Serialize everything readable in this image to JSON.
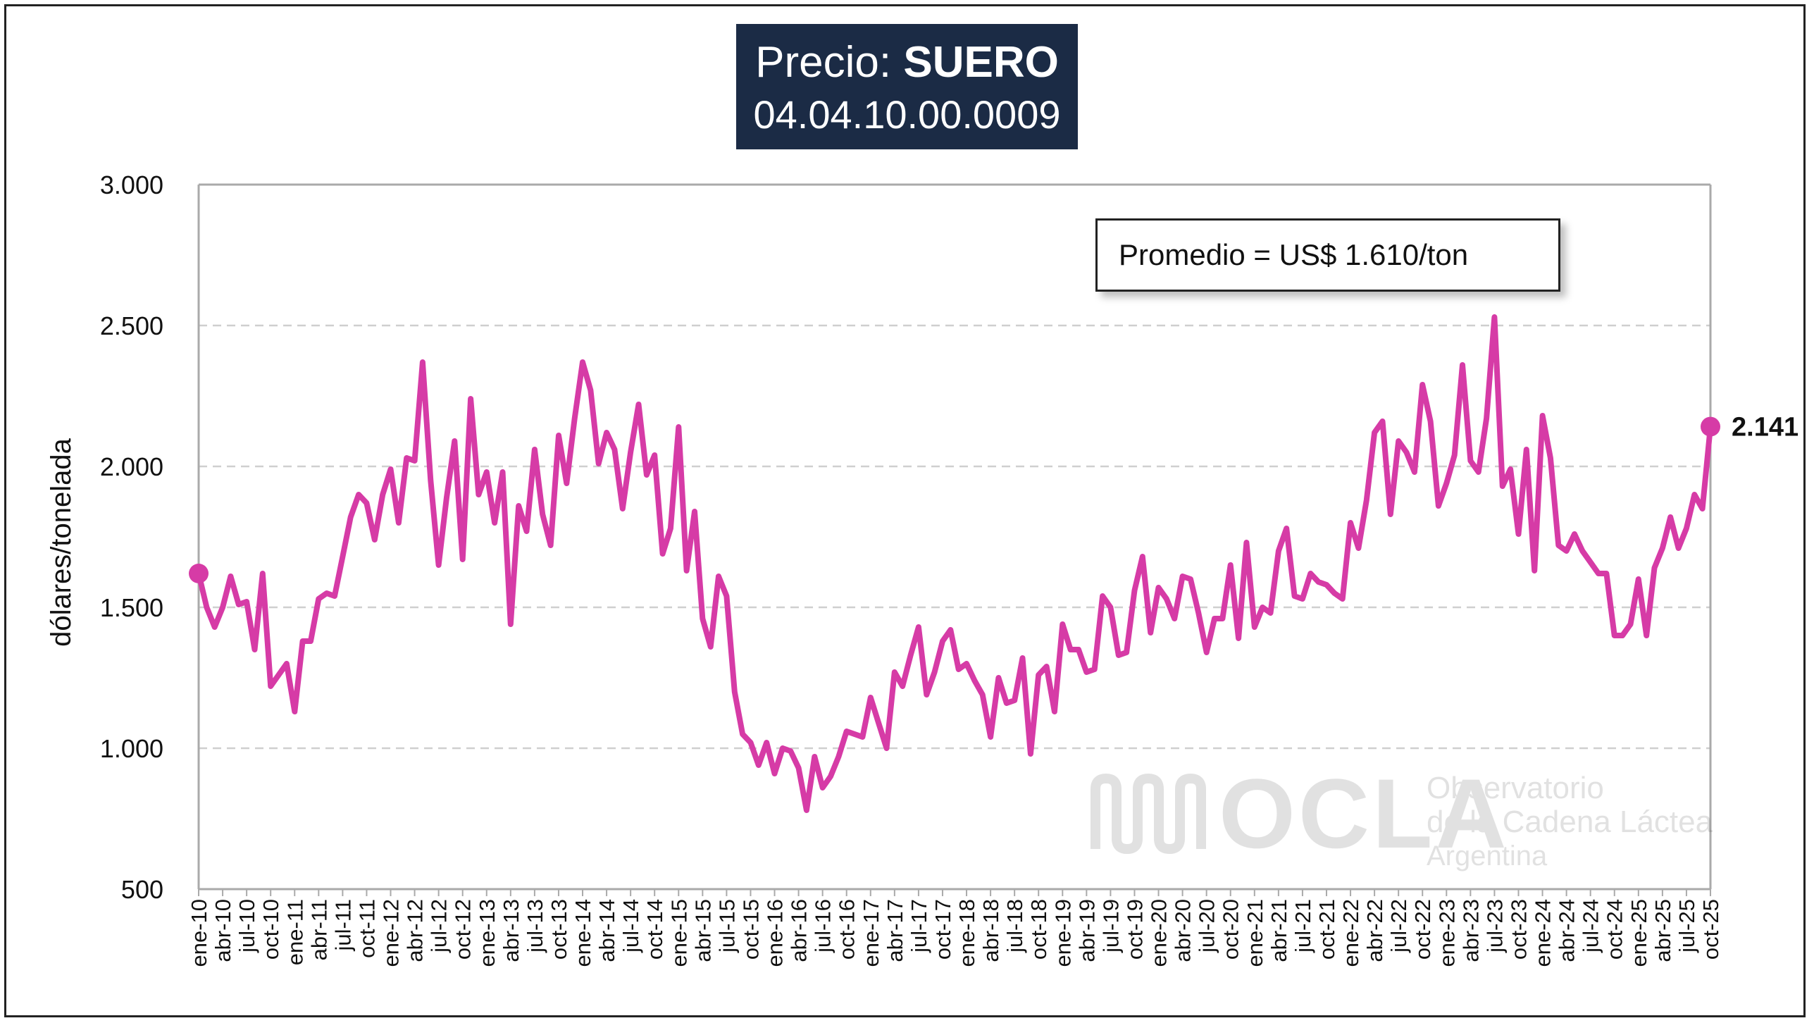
{
  "title": {
    "prefix": "Precio: ",
    "product": "SUERO",
    "code": "04.04.10.00.0009"
  },
  "annotation": {
    "average_label": "Promedio = US$ 1.610/ton",
    "last_value_label": "2.141"
  },
  "watermark": {
    "logo_text": "OCLA",
    "line1": "Observatorio",
    "line2": "de la Cadena Láctea",
    "line3": "Argentina"
  },
  "colors": {
    "series": "#d63ba6",
    "title_bg": "#1b2b45",
    "grid": "#cfcfcf"
  },
  "chart_data": {
    "type": "line",
    "ylabel": "dólares/tonelada",
    "xlabel": "",
    "ylim": [
      500,
      3000
    ],
    "yticks": [
      500,
      1000,
      1500,
      2000,
      2500,
      3000
    ],
    "ytick_labels": [
      "500",
      "1.000",
      "1.500",
      "2.000",
      "2.500",
      "3.000"
    ],
    "grid": "horizontal dashed",
    "legend": "none",
    "xtick_labels": [
      "ene-10",
      "abr-10",
      "jul-10",
      "oct-10",
      "ene-11",
      "abr-11",
      "jul-11",
      "oct-11",
      "ene-12",
      "abr-12",
      "jul-12",
      "oct-12",
      "ene-13",
      "abr-13",
      "jul-13",
      "oct-13",
      "ene-14",
      "abr-14",
      "jul-14",
      "oct-14",
      "ene-15",
      "abr-15",
      "jul-15",
      "oct-15",
      "ene-16",
      "abr-16",
      "jul-16",
      "oct-16",
      "ene-17",
      "abr-17",
      "jul-17",
      "oct-17",
      "ene-18",
      "abr-18",
      "jul-18",
      "oct-18",
      "ene-19",
      "abr-19",
      "jul-19",
      "oct-19",
      "ene-20",
      "abr-20",
      "jul-20",
      "oct-20",
      "ene-21",
      "abr-21",
      "jul-21",
      "oct-21",
      "ene-22",
      "abr-22",
      "jul-22",
      "oct-22",
      "ene-23",
      "abr-23",
      "jul-23",
      "oct-23",
      "ene-24",
      "abr-24",
      "jul-24",
      "oct-24",
      "ene-25",
      "abr-25",
      "jul-25",
      "oct-25"
    ],
    "series": [
      {
        "values": [
          1620,
          1500,
          1430,
          1500,
          1610,
          1510,
          1520,
          1350,
          1620,
          1220,
          1260,
          1300,
          1130,
          1380,
          1380,
          1530,
          1550,
          1540,
          1680,
          1820,
          1900,
          1870,
          1740,
          1900,
          1990,
          1800,
          2030,
          2020,
          2370,
          1950,
          1650,
          1890,
          2090,
          1670,
          2240,
          1900,
          1980,
          1800,
          1980,
          1440,
          1860,
          1770,
          2060,
          1830,
          1720,
          2110,
          1940,
          2170,
          2370,
          2270,
          2010,
          2120,
          2060,
          1850,
          2050,
          2220,
          1970,
          2040,
          1690,
          1780,
          2140,
          1630,
          1840,
          1460,
          1360,
          1610,
          1540,
          1200,
          1050,
          1020,
          940,
          1020,
          910,
          1000,
          990,
          930,
          780,
          970,
          860,
          900,
          970,
          1060,
          1050,
          1040,
          1180,
          1090,
          1000,
          1270,
          1220,
          1330,
          1430,
          1190,
          1270,
          1380,
          1420,
          1280,
          1300,
          1240,
          1190,
          1040,
          1250,
          1160,
          1170,
          1320,
          980,
          1260,
          1290,
          1130,
          1440,
          1350,
          1350,
          1270,
          1280,
          1540,
          1500,
          1330,
          1340,
          1560,
          1680,
          1410,
          1570,
          1530,
          1460,
          1610,
          1600,
          1480,
          1340,
          1460,
          1460,
          1650,
          1390,
          1730,
          1430,
          1500,
          1480,
          1700,
          1780,
          1540,
          1530,
          1620,
          1590,
          1580,
          1550,
          1530,
          1800,
          1710,
          1880,
          2120,
          2160,
          1830,
          2090,
          2050,
          1980,
          2290,
          2160,
          1860,
          1940,
          2040,
          2360,
          2020,
          1980,
          2170,
          2530,
          1930,
          1990,
          1760,
          2060,
          1630,
          2180,
          2030,
          1720,
          1700,
          1760,
          1700,
          1660,
          1620,
          1620,
          1400,
          1400,
          1440,
          1600,
          1400,
          1640,
          1710,
          1820,
          1710,
          1780,
          1900,
          1850,
          2141
        ]
      }
    ]
  }
}
